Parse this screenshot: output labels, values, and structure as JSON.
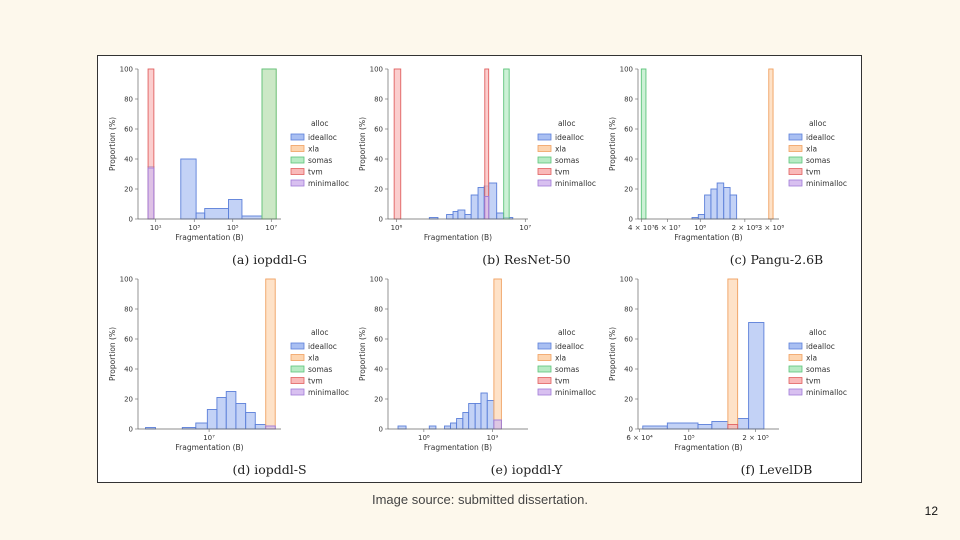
{
  "source_note": "Image source: submitted dissertation.",
  "page_number": "12",
  "legend_title": "alloc",
  "legend": [
    {
      "name": "idealloc",
      "fill": "#a9bff2",
      "stroke": "#5b7fd9"
    },
    {
      "name": "xla",
      "fill": "#fdd5b0",
      "stroke": "#f0a060"
    },
    {
      "name": "somas",
      "fill": "#b7ebc4",
      "stroke": "#5cc47a"
    },
    {
      "name": "tvm",
      "fill": "#f9b9b9",
      "stroke": "#e06060"
    },
    {
      "name": "minimalloc",
      "fill": "#d8c0f0",
      "stroke": "#a07ad8"
    }
  ],
  "chart_data": [
    {
      "type": "bar",
      "caption": "(a) iopddl-G",
      "xlabel": "Fragmentation (B)",
      "ylabel": "Proportion (%)",
      "ylim": [
        0,
        100
      ],
      "xscale": "log",
      "xlim": [
        1.2,
        32000000.0
      ],
      "xticks": [
        {
          "v": 10,
          "label": "10¹"
        },
        {
          "v": 1000,
          "label": "10³"
        },
        {
          "v": 100000,
          "label": "10⁵"
        },
        {
          "v": 10000000,
          "label": "10⁷"
        }
      ],
      "yticks": [
        0,
        20,
        40,
        60,
        80,
        100
      ],
      "series": [
        {
          "name": "idealloc",
          "bins": [
            [
              4,
              8,
              35
            ],
            [
              200,
              1250,
              40
            ],
            [
              1250,
              3500,
              4
            ],
            [
              3500,
              60000,
              7
            ],
            [
              60000,
              300000,
              13
            ],
            [
              300000,
              3300000,
              2
            ]
          ]
        },
        {
          "name": "xla",
          "bins": [
            [
              3300000,
              18000000,
              100
            ]
          ]
        },
        {
          "name": "tvm",
          "bins": [
            [
              4,
              8,
              100
            ]
          ]
        },
        {
          "name": "minimalloc",
          "bins": [
            [
              4,
              8,
              34
            ]
          ]
        },
        {
          "name": "somas",
          "bins": [
            [
              3300000,
              18000000,
              100
            ]
          ]
        }
      ]
    },
    {
      "type": "bar",
      "caption": "(b) ResNet-50",
      "xlabel": "Fragmentation (B)",
      "ylabel": "Proportion (%)",
      "ylim": [
        0,
        100
      ],
      "xscale": "log",
      "xlim": [
        860000,
        10500000
      ],
      "xticks": [
        {
          "v": 1000000,
          "label": "10⁶"
        },
        {
          "v": 10000000,
          "label": "10⁷"
        }
      ],
      "yticks": [
        0,
        20,
        40,
        60,
        80,
        100
      ],
      "series": [
        {
          "name": "idealloc",
          "bins": [
            [
              1800000,
              2100000,
              1
            ],
            [
              2450000,
              2750000,
              3
            ],
            [
              2750000,
              3000000,
              5
            ],
            [
              3000000,
              3400000,
              6
            ],
            [
              3400000,
              3800000,
              3
            ],
            [
              3800000,
              4300000,
              16
            ],
            [
              4300000,
              4800000,
              21
            ],
            [
              4800000,
              5200000,
              22
            ],
            [
              5200000,
              6000000,
              24
            ],
            [
              6000000,
              6800000,
              4
            ],
            [
              6800000,
              8000000,
              1
            ]
          ]
        },
        {
          "name": "tvm",
          "bins": [
            [
              960000,
              1080000,
              100
            ],
            [
              4850000,
              5200000,
              100
            ]
          ]
        },
        {
          "name": "somas",
          "bins": [
            [
              6800000,
              7500000,
              100
            ]
          ]
        },
        {
          "name": "minimalloc",
          "bins": [
            [
              4850000,
              5200000,
              15
            ]
          ]
        }
      ]
    },
    {
      "type": "bar",
      "caption": "(c) Pangu-2.6B",
      "xlabel": "Fragmentation (B)",
      "ylabel": "Proportion (%)",
      "ylim": [
        0,
        100
      ],
      "xscale": "log",
      "xlim": [
        38000000,
        340000000
      ],
      "xticks": [
        {
          "v": 40000000,
          "label": "4 × 10⁷"
        },
        {
          "v": 60000000,
          "label": "6 × 10⁷"
        },
        {
          "v": 100000000,
          "label": "10⁸"
        },
        {
          "v": 200000000,
          "label": "2 × 10⁸"
        },
        {
          "v": 300000000,
          "label": "3 × 10⁸"
        }
      ],
      "yticks": [
        0,
        20,
        40,
        60,
        80,
        100
      ],
      "series": [
        {
          "name": "idealloc",
          "bins": [
            [
              88000000,
              97000000,
              1
            ],
            [
              97000000,
              107000000,
              3
            ],
            [
              107000000,
              118000000,
              16
            ],
            [
              118000000,
              130000000,
              20
            ],
            [
              130000000,
              144000000,
              24
            ],
            [
              144000000,
              159000000,
              21
            ],
            [
              159000000,
              176000000,
              16
            ]
          ]
        },
        {
          "name": "somas",
          "bins": [
            [
              40000000,
              43000000,
              100
            ]
          ]
        },
        {
          "name": "xla",
          "bins": [
            [
              290000000,
              310000000,
              100
            ]
          ]
        }
      ]
    },
    {
      "type": "bar",
      "caption": "(d) iopddl-S",
      "xlabel": "Fragmentation (B)",
      "ylabel": "Proportion (%)",
      "ylim": [
        0,
        100
      ],
      "xscale": "log",
      "xlim": [
        140000,
        750000000
      ],
      "xticks": [
        {
          "v": 10000000,
          "label": "10⁷"
        }
      ],
      "yticks": [
        0,
        20,
        40,
        60,
        80,
        100
      ],
      "series": [
        {
          "name": "idealloc",
          "bins": [
            [
              220000,
              400000,
              1
            ],
            [
              2000000,
              4500000,
              1
            ],
            [
              4500000,
              9000000,
              4
            ],
            [
              9000000,
              16000000,
              13
            ],
            [
              16000000,
              28000000,
              21
            ],
            [
              28000000,
              50000000,
              25
            ],
            [
              50000000,
              90000000,
              17
            ],
            [
              90000000,
              160000000,
              11
            ],
            [
              160000000,
              300000000,
              3
            ],
            [
              300000000,
              530000000,
              2
            ]
          ]
        },
        {
          "name": "xla",
          "bins": [
            [
              300000000,
              530000000,
              100
            ]
          ]
        },
        {
          "name": "minimalloc",
          "bins": [
            [
              300000000,
              530000000,
              2
            ]
          ]
        }
      ]
    },
    {
      "type": "bar",
      "caption": "(e) iopddl-Y",
      "xlabel": "Fragmentation (B)",
      "ylabel": "Proportion (%)",
      "ylim": [
        0,
        100
      ],
      "xscale": "log",
      "xlim": [
        30000000,
        3300000000
      ],
      "xticks": [
        {
          "v": 100000000,
          "label": "10⁸"
        },
        {
          "v": 1000000000,
          "label": "10⁹"
        }
      ],
      "yticks": [
        0,
        20,
        40,
        60,
        80,
        100
      ],
      "series": [
        {
          "name": "idealloc",
          "bins": [
            [
              42000000,
              55000000,
              2
            ],
            [
              120000000,
              150000000,
              2
            ],
            [
              200000000,
              245000000,
              2
            ],
            [
              245000000,
              300000000,
              4
            ],
            [
              300000000,
              370000000,
              7
            ],
            [
              370000000,
              450000000,
              11
            ],
            [
              450000000,
              560000000,
              17
            ],
            [
              560000000,
              680000000,
              17
            ],
            [
              680000000,
              840000000,
              24
            ],
            [
              840000000,
              1050000000,
              19
            ],
            [
              1050000000,
              1350000000,
              6
            ]
          ]
        },
        {
          "name": "xla",
          "bins": [
            [
              1050000000,
              1350000000,
              100
            ]
          ]
        },
        {
          "name": "minimalloc",
          "bins": [
            [
              1050000000,
              1350000000,
              6
            ]
          ]
        }
      ]
    },
    {
      "type": "bar",
      "caption": "(f) LevelDB",
      "xlabel": "Fragmentation (B)",
      "ylabel": "Proportion (%)",
      "ylim": [
        0,
        100
      ],
      "xscale": "log",
      "xlim": [
        59000,
        255000
      ],
      "xticks": [
        {
          "v": 60000,
          "label": "6 × 10⁴"
        },
        {
          "v": 100000,
          "label": "10⁵"
        },
        {
          "v": 200000,
          "label": "2 × 10⁵"
        }
      ],
      "yticks": [
        0,
        20,
        40,
        60,
        80,
        100
      ],
      "series": [
        {
          "name": "idealloc",
          "bins": [
            [
              62000,
              80000,
              2
            ],
            [
              80000,
              110000,
              4
            ],
            [
              110000,
              127000,
              3
            ],
            [
              127000,
              150000,
              5
            ],
            [
              150000,
              166000,
              2
            ],
            [
              166000,
              186000,
              7
            ],
            [
              186000,
              218000,
              71
            ]
          ]
        },
        {
          "name": "xla",
          "bins": [
            [
              150000,
              166000,
              100
            ]
          ]
        },
        {
          "name": "tvm",
          "bins": [
            [
              150000,
              166000,
              3
            ]
          ]
        }
      ]
    }
  ]
}
